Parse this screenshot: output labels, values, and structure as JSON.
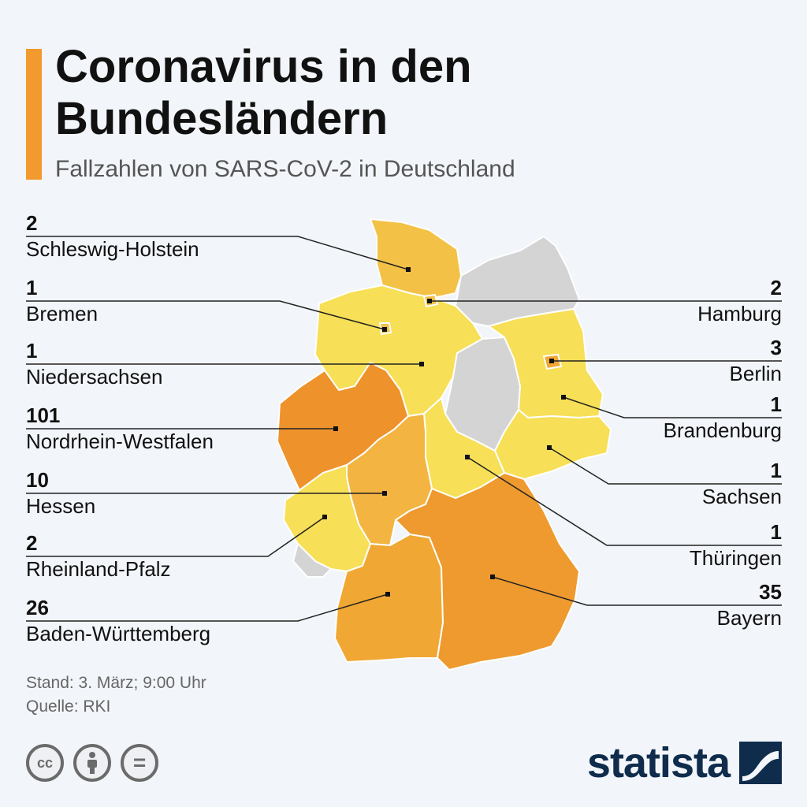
{
  "header": {
    "title_line1": "Coronavirus in den",
    "title_line2": "Bundesländern",
    "subtitle": "Fallzahlen von SARS-CoV-2 in Deutschland"
  },
  "colors": {
    "accent": "#f29a2e",
    "no_cases": "#d4d4d4",
    "low": "#f7df57",
    "mid": "#f3c146",
    "high": "#f0a733",
    "highest": "#ee922c"
  },
  "states": {
    "schleswig_holstein": {
      "name": "Schleswig-Holstein",
      "cases": "2"
    },
    "bremen": {
      "name": "Bremen",
      "cases": "1"
    },
    "niedersachsen": {
      "name": "Niedersachsen",
      "cases": "1"
    },
    "nrw": {
      "name": "Nordrhein-Westfalen",
      "cases": "101"
    },
    "hessen": {
      "name": "Hessen",
      "cases": "10"
    },
    "rlp": {
      "name": "Rheinland-Pfalz",
      "cases": "2"
    },
    "bw": {
      "name": "Baden-Württemberg",
      "cases": "26"
    },
    "hamburg": {
      "name": "Hamburg",
      "cases": "2"
    },
    "berlin": {
      "name": "Berlin",
      "cases": "3"
    },
    "brandenburg": {
      "name": "Brandenburg",
      "cases": "1"
    },
    "sachsen": {
      "name": "Sachsen",
      "cases": "1"
    },
    "thueringen": {
      "name": "Thüringen",
      "cases": "1"
    },
    "bayern": {
      "name": "Bayern",
      "cases": "35"
    }
  },
  "footer": {
    "stand": "Stand: 3. März; 9:00 Uhr",
    "quelle": "Quelle: RKI",
    "cc_label": "cc",
    "eq_label": "=",
    "brand": "statista"
  }
}
